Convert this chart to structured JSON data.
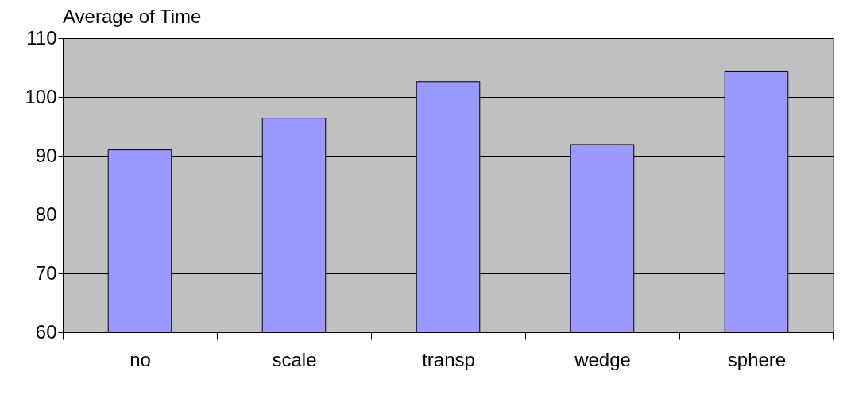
{
  "chart_data": {
    "type": "bar",
    "title": "Average of Time",
    "categories": [
      "no",
      "scale",
      "transp",
      "wedge",
      "sphere"
    ],
    "values": [
      91.0,
      96.4,
      102.6,
      91.9,
      104.4
    ],
    "color": "#9999ff",
    "ylim": [
      60,
      110
    ],
    "yticks": [
      60,
      70,
      80,
      90,
      100,
      110
    ],
    "grid": "y"
  }
}
